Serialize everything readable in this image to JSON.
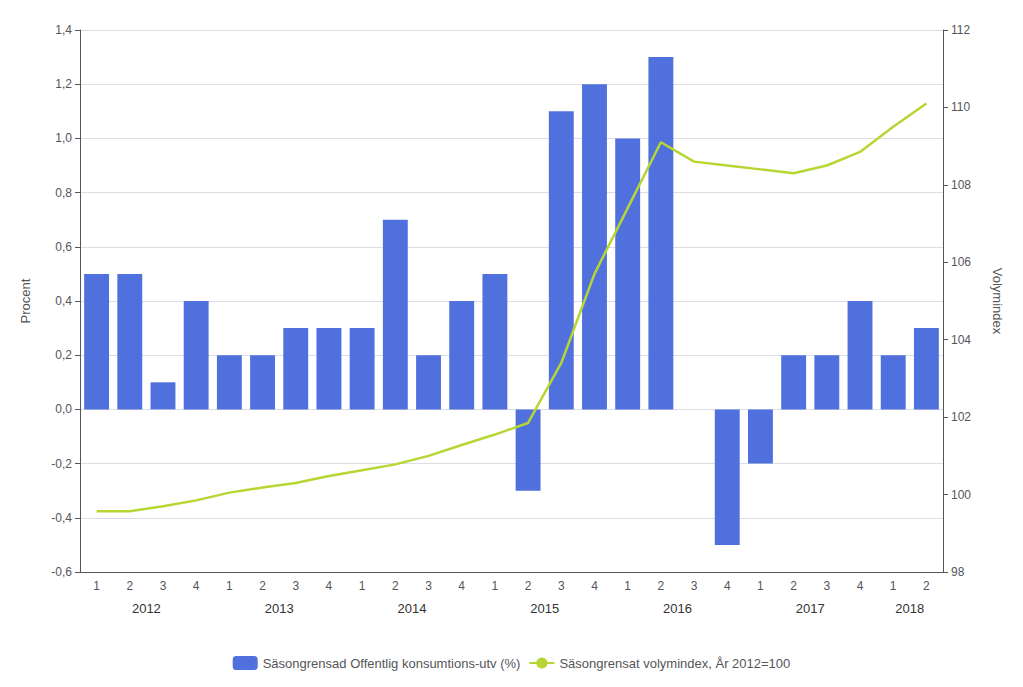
{
  "chart_data": {
    "type": "bar",
    "categories": [
      "1",
      "2",
      "3",
      "4",
      "1",
      "2",
      "3",
      "4",
      "1",
      "2",
      "3",
      "4",
      "1",
      "2",
      "3",
      "4",
      "1",
      "2",
      "3",
      "4",
      "1",
      "2",
      "3",
      "4",
      "1",
      "2"
    ],
    "category_groups": [
      "2012",
      "2012",
      "2012",
      "2012",
      "2013",
      "2013",
      "2013",
      "2013",
      "2014",
      "2014",
      "2014",
      "2014",
      "2015",
      "2015",
      "2015",
      "2015",
      "2016",
      "2016",
      "2016",
      "2016",
      "2017",
      "2017",
      "2017",
      "2017",
      "2018",
      "2018"
    ],
    "series": [
      {
        "name": "Säsongrensad Offentlig konsumtions-utv (%)",
        "type": "bar",
        "values": [
          0.5,
          0.5,
          0.1,
          0.4,
          0.2,
          0.2,
          0.3,
          0.3,
          0.3,
          0.7,
          0.2,
          0.4,
          0.5,
          -0.3,
          1.1,
          1.2,
          1.0,
          1.3,
          null,
          -0.5,
          -0.2,
          0.2,
          0.2,
          0.4,
          0.2,
          0.3
        ]
      },
      {
        "name": "Säsongrensat volymindex, År 2012=100",
        "type": "line",
        "axis": "y2",
        "values": [
          99.57,
          99.57,
          99.7,
          99.85,
          100.05,
          100.18,
          100.3,
          100.48,
          100.63,
          100.78,
          101.0,
          101.28,
          101.55,
          101.85,
          103.4,
          105.7,
          107.4,
          109.1,
          108.6,
          108.5,
          108.4,
          108.3,
          108.5,
          108.85,
          109.5,
          110.1
        ]
      }
    ],
    "ylabel": "Procent",
    "y2label": "Volymindex",
    "ylim": [
      -0.6,
      1.4
    ],
    "yticks": [
      {
        "value": -0.6,
        "label": "-0,6"
      },
      {
        "value": -0.4,
        "label": "-0,4"
      },
      {
        "value": -0.2,
        "label": "-0,2"
      },
      {
        "value": 0.0,
        "label": "0,0"
      },
      {
        "value": 0.2,
        "label": "0,2"
      },
      {
        "value": 0.4,
        "label": "0,4"
      },
      {
        "value": 0.6,
        "label": "0,6"
      },
      {
        "value": 0.8,
        "label": "0,8"
      },
      {
        "value": 1.0,
        "label": "1,0"
      },
      {
        "value": 1.2,
        "label": "1,2"
      },
      {
        "value": 1.4,
        "label": "1,4"
      }
    ],
    "y2lim": [
      98,
      112
    ],
    "y2ticks": [
      98,
      100,
      102,
      104,
      106,
      108,
      110,
      112
    ],
    "grid": true,
    "legend": "bottom"
  }
}
